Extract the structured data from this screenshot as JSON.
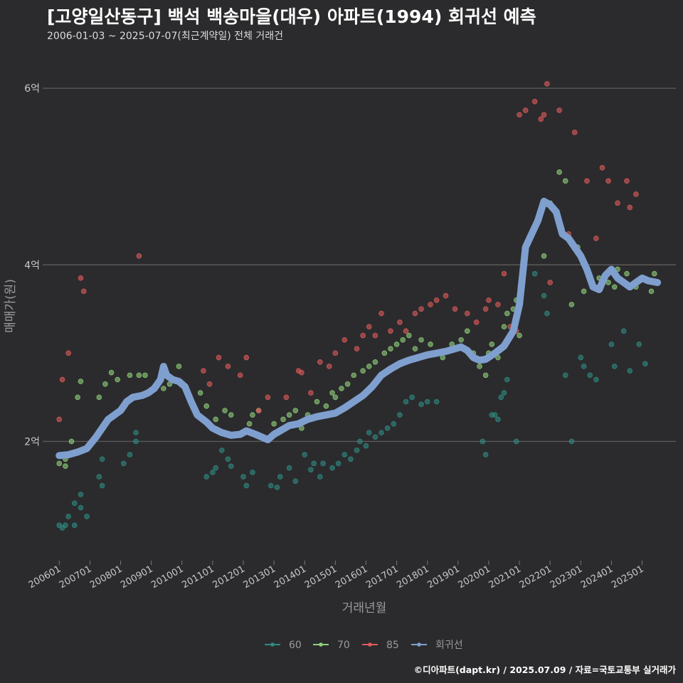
{
  "title": "[고양일산동구] 백석 백송마을(대우) 아파트(1994) 회귀선 예측",
  "subtitle": "2006-01-03 ~ 2025-07-07(최근계약일) 전체 거래건",
  "caption": "©디아파트(dapt.kr) / 2025.07.09 / 자료=국토교통부 실거래가",
  "colors": {
    "background": "#2b2b2d",
    "grid": "#5a5a5a",
    "s60": "#2e8b82",
    "s70": "#8fd07a",
    "s85": "#e05a5a",
    "trend": "#7f9fcf"
  },
  "chart_data": {
    "type": "scatter",
    "title": "[고양일산동구] 백석 백송마을(대우) 아파트(1994) 회귀선 예측",
    "xlabel": "거래년월",
    "ylabel": "매매가(원)",
    "xlim": [
      2005.6,
      2026.1
    ],
    "ylim": [
      0.65,
      6.5
    ],
    "x_ticks": [
      {
        "value": 2006,
        "label": "200601"
      },
      {
        "value": 2007,
        "label": "200701"
      },
      {
        "value": 2008,
        "label": "200801"
      },
      {
        "value": 2009,
        "label": "200901"
      },
      {
        "value": 2010,
        "label": "201001"
      },
      {
        "value": 2011,
        "label": "201101"
      },
      {
        "value": 2012,
        "label": "201201"
      },
      {
        "value": 2013,
        "label": "201301"
      },
      {
        "value": 2014,
        "label": "201401"
      },
      {
        "value": 2015,
        "label": "201501"
      },
      {
        "value": 2016,
        "label": "201601"
      },
      {
        "value": 2017,
        "label": "201701"
      },
      {
        "value": 2018,
        "label": "201801"
      },
      {
        "value": 2019,
        "label": "201901"
      },
      {
        "value": 2020,
        "label": "202001"
      },
      {
        "value": 2021,
        "label": "202101"
      },
      {
        "value": 2022,
        "label": "202201"
      },
      {
        "value": 2023,
        "label": "202301"
      },
      {
        "value": 2024,
        "label": "202401"
      },
      {
        "value": 2025,
        "label": "202501"
      }
    ],
    "y_ticks": [
      {
        "value": 2,
        "label": "2억"
      },
      {
        "value": 4,
        "label": "4억"
      },
      {
        "value": 6,
        "label": "6억"
      }
    ],
    "legend": [
      "60",
      "70",
      "85",
      "회귀선"
    ],
    "series": [
      {
        "name": "60",
        "points": [
          [
            2006.0,
            1.05
          ],
          [
            2006.1,
            1.02
          ],
          [
            2006.2,
            1.05
          ],
          [
            2006.3,
            1.15
          ],
          [
            2006.5,
            1.05
          ],
          [
            2006.5,
            1.3
          ],
          [
            2006.7,
            1.25
          ],
          [
            2006.7,
            1.4
          ],
          [
            2006.9,
            1.15
          ],
          [
            2007.3,
            1.6
          ],
          [
            2007.4,
            1.5
          ],
          [
            2007.4,
            1.8
          ],
          [
            2008.1,
            1.75
          ],
          [
            2008.3,
            1.85
          ],
          [
            2008.5,
            2.1
          ],
          [
            2008.5,
            2.0
          ],
          [
            2010.8,
            1.6
          ],
          [
            2011.0,
            1.65
          ],
          [
            2011.1,
            1.7
          ],
          [
            2011.3,
            1.9
          ],
          [
            2011.5,
            1.8
          ],
          [
            2011.6,
            1.72
          ],
          [
            2012.0,
            1.6
          ],
          [
            2012.1,
            1.5
          ],
          [
            2012.3,
            1.65
          ],
          [
            2012.9,
            1.5
          ],
          [
            2013.1,
            1.48
          ],
          [
            2013.2,
            1.6
          ],
          [
            2013.5,
            1.7
          ],
          [
            2013.7,
            1.55
          ],
          [
            2014.0,
            1.85
          ],
          [
            2014.2,
            1.68
          ],
          [
            2014.3,
            1.75
          ],
          [
            2014.5,
            1.6
          ],
          [
            2014.6,
            1.75
          ],
          [
            2014.9,
            1.7
          ],
          [
            2015.1,
            1.75
          ],
          [
            2015.3,
            1.85
          ],
          [
            2015.5,
            1.8
          ],
          [
            2015.7,
            1.9
          ],
          [
            2015.8,
            2.0
          ],
          [
            2016.0,
            1.95
          ],
          [
            2016.1,
            2.1
          ],
          [
            2016.3,
            2.05
          ],
          [
            2016.5,
            2.1
          ],
          [
            2016.7,
            2.15
          ],
          [
            2016.9,
            2.2
          ],
          [
            2017.1,
            2.3
          ],
          [
            2017.3,
            2.45
          ],
          [
            2017.5,
            2.5
          ],
          [
            2017.8,
            2.42
          ],
          [
            2018.0,
            2.45
          ],
          [
            2018.3,
            2.45
          ],
          [
            2019.8,
            2.0
          ],
          [
            2019.9,
            1.85
          ],
          [
            2020.1,
            2.3
          ],
          [
            2020.2,
            2.3
          ],
          [
            2020.3,
            2.25
          ],
          [
            2020.4,
            2.5
          ],
          [
            2020.5,
            2.55
          ],
          [
            2020.6,
            2.7
          ],
          [
            2020.9,
            2.0
          ],
          [
            2021.5,
            3.9
          ],
          [
            2021.8,
            3.65
          ],
          [
            2021.9,
            3.45
          ],
          [
            2022.5,
            2.75
          ],
          [
            2022.7,
            2.0
          ],
          [
            2023.0,
            2.95
          ],
          [
            2023.1,
            2.85
          ],
          [
            2023.3,
            2.75
          ],
          [
            2023.5,
            2.7
          ],
          [
            2024.0,
            3.1
          ],
          [
            2024.1,
            2.85
          ],
          [
            2024.4,
            3.25
          ],
          [
            2024.6,
            2.8
          ],
          [
            2024.9,
            3.1
          ],
          [
            2025.1,
            2.88
          ]
        ]
      },
      {
        "name": "70",
        "points": [
          [
            2006.0,
            1.75
          ],
          [
            2006.2,
            1.72
          ],
          [
            2006.2,
            1.8
          ],
          [
            2006.4,
            2.0
          ],
          [
            2006.6,
            2.5
          ],
          [
            2006.7,
            2.68
          ],
          [
            2007.3,
            2.5
          ],
          [
            2007.5,
            2.65
          ],
          [
            2007.7,
            2.78
          ],
          [
            2007.9,
            2.7
          ],
          [
            2008.3,
            2.75
          ],
          [
            2008.6,
            2.75
          ],
          [
            2008.8,
            2.75
          ],
          [
            2009.4,
            2.6
          ],
          [
            2009.6,
            2.65
          ],
          [
            2009.9,
            2.85
          ],
          [
            2010.6,
            2.55
          ],
          [
            2010.8,
            2.4
          ],
          [
            2011.1,
            2.25
          ],
          [
            2011.4,
            2.35
          ],
          [
            2011.6,
            2.3
          ],
          [
            2012.2,
            2.2
          ],
          [
            2012.3,
            2.3
          ],
          [
            2012.5,
            2.35
          ],
          [
            2013.0,
            2.2
          ],
          [
            2013.3,
            2.25
          ],
          [
            2013.5,
            2.3
          ],
          [
            2013.7,
            2.35
          ],
          [
            2013.9,
            2.15
          ],
          [
            2014.1,
            2.3
          ],
          [
            2014.4,
            2.45
          ],
          [
            2014.7,
            2.4
          ],
          [
            2014.9,
            2.55
          ],
          [
            2015.0,
            2.5
          ],
          [
            2015.2,
            2.6
          ],
          [
            2015.4,
            2.65
          ],
          [
            2015.6,
            2.75
          ],
          [
            2015.9,
            2.8
          ],
          [
            2016.1,
            2.85
          ],
          [
            2016.3,
            2.9
          ],
          [
            2016.6,
            3.0
          ],
          [
            2016.8,
            3.05
          ],
          [
            2017.0,
            3.1
          ],
          [
            2017.2,
            3.15
          ],
          [
            2017.4,
            3.2
          ],
          [
            2017.6,
            3.05
          ],
          [
            2017.8,
            3.15
          ],
          [
            2018.1,
            3.1
          ],
          [
            2018.3,
            3.0
          ],
          [
            2018.5,
            2.95
          ],
          [
            2018.8,
            3.1
          ],
          [
            2019.1,
            3.15
          ],
          [
            2019.3,
            3.25
          ],
          [
            2019.5,
            3.0
          ],
          [
            2019.7,
            2.85
          ],
          [
            2019.9,
            2.75
          ],
          [
            2020.0,
            3.0
          ],
          [
            2020.1,
            3.1
          ],
          [
            2020.3,
            2.95
          ],
          [
            2020.5,
            3.3
          ],
          [
            2020.6,
            3.45
          ],
          [
            2020.8,
            3.5
          ],
          [
            2020.9,
            3.6
          ],
          [
            2021.0,
            3.2
          ],
          [
            2021.3,
            4.25
          ],
          [
            2021.6,
            4.5
          ],
          [
            2021.8,
            4.1
          ],
          [
            2022.0,
            4.7
          ],
          [
            2022.3,
            5.05
          ],
          [
            2022.5,
            4.95
          ],
          [
            2022.7,
            3.55
          ],
          [
            2022.9,
            4.2
          ],
          [
            2023.1,
            3.7
          ],
          [
            2023.4,
            3.75
          ],
          [
            2023.6,
            3.85
          ],
          [
            2023.9,
            3.8
          ],
          [
            2024.1,
            3.75
          ],
          [
            2024.2,
            3.95
          ],
          [
            2024.5,
            3.9
          ],
          [
            2024.8,
            3.75
          ],
          [
            2025.0,
            3.85
          ],
          [
            2025.3,
            3.7
          ],
          [
            2025.4,
            3.9
          ]
        ]
      },
      {
        "name": "85",
        "points": [
          [
            2006.0,
            2.25
          ],
          [
            2006.1,
            2.7
          ],
          [
            2006.3,
            3.0
          ],
          [
            2006.7,
            3.85
          ],
          [
            2006.8,
            3.7
          ],
          [
            2008.6,
            4.1
          ],
          [
            2010.7,
            2.8
          ],
          [
            2010.9,
            2.65
          ],
          [
            2011.2,
            2.95
          ],
          [
            2011.5,
            2.85
          ],
          [
            2011.9,
            2.75
          ],
          [
            2012.1,
            2.95
          ],
          [
            2012.5,
            2.35
          ],
          [
            2012.8,
            2.5
          ],
          [
            2013.4,
            2.5
          ],
          [
            2013.8,
            2.8
          ],
          [
            2013.9,
            2.78
          ],
          [
            2014.2,
            2.55
          ],
          [
            2014.5,
            2.9
          ],
          [
            2014.8,
            2.85
          ],
          [
            2015.0,
            3.0
          ],
          [
            2015.3,
            3.15
          ],
          [
            2015.7,
            3.05
          ],
          [
            2015.9,
            3.2
          ],
          [
            2016.1,
            3.3
          ],
          [
            2016.3,
            3.2
          ],
          [
            2016.5,
            3.45
          ],
          [
            2016.8,
            3.25
          ],
          [
            2017.1,
            3.35
          ],
          [
            2017.3,
            3.25
          ],
          [
            2017.6,
            3.45
          ],
          [
            2017.8,
            3.5
          ],
          [
            2018.1,
            3.55
          ],
          [
            2018.3,
            3.6
          ],
          [
            2018.6,
            3.65
          ],
          [
            2018.9,
            3.5
          ],
          [
            2019.3,
            3.45
          ],
          [
            2019.6,
            3.35
          ],
          [
            2019.9,
            3.5
          ],
          [
            2020.0,
            3.6
          ],
          [
            2020.3,
            3.55
          ],
          [
            2020.5,
            3.9
          ],
          [
            2020.7,
            3.3
          ],
          [
            2020.9,
            3.25
          ],
          [
            2021.0,
            5.7
          ],
          [
            2021.2,
            5.75
          ],
          [
            2021.5,
            5.85
          ],
          [
            2021.7,
            5.65
          ],
          [
            2021.8,
            5.7
          ],
          [
            2021.9,
            6.05
          ],
          [
            2022.3,
            5.75
          ],
          [
            2022.6,
            4.35
          ],
          [
            2022.8,
            5.5
          ],
          [
            2023.2,
            4.95
          ],
          [
            2023.5,
            4.3
          ],
          [
            2023.7,
            5.1
          ],
          [
            2023.9,
            4.95
          ],
          [
            2024.2,
            4.7
          ],
          [
            2024.5,
            4.95
          ],
          [
            2024.6,
            4.65
          ],
          [
            2024.8,
            4.8
          ],
          [
            2022.0,
            3.8
          ]
        ]
      }
    ],
    "trend": [
      [
        2006.0,
        1.84
      ],
      [
        2006.3,
        1.85
      ],
      [
        2006.6,
        1.88
      ],
      [
        2006.9,
        1.92
      ],
      [
        2007.2,
        2.05
      ],
      [
        2007.4,
        2.15
      ],
      [
        2007.6,
        2.25
      ],
      [
        2007.8,
        2.3
      ],
      [
        2008.0,
        2.35
      ],
      [
        2008.2,
        2.45
      ],
      [
        2008.4,
        2.5
      ],
      [
        2008.7,
        2.52
      ],
      [
        2008.9,
        2.55
      ],
      [
        2009.1,
        2.6
      ],
      [
        2009.3,
        2.7
      ],
      [
        2009.4,
        2.85
      ],
      [
        2009.5,
        2.75
      ],
      [
        2009.7,
        2.7
      ],
      [
        2009.9,
        2.68
      ],
      [
        2010.1,
        2.62
      ],
      [
        2010.3,
        2.45
      ],
      [
        2010.5,
        2.3
      ],
      [
        2010.8,
        2.22
      ],
      [
        2011.0,
        2.15
      ],
      [
        2011.3,
        2.1
      ],
      [
        2011.6,
        2.07
      ],
      [
        2011.9,
        2.08
      ],
      [
        2012.1,
        2.12
      ],
      [
        2012.4,
        2.08
      ],
      [
        2012.6,
        2.05
      ],
      [
        2012.8,
        2.02
      ],
      [
        2013.0,
        2.08
      ],
      [
        2013.2,
        2.12
      ],
      [
        2013.5,
        2.18
      ],
      [
        2013.8,
        2.2
      ],
      [
        2014.1,
        2.25
      ],
      [
        2014.4,
        2.28
      ],
      [
        2014.7,
        2.3
      ],
      [
        2015.0,
        2.32
      ],
      [
        2015.3,
        2.38
      ],
      [
        2015.6,
        2.45
      ],
      [
        2015.9,
        2.52
      ],
      [
        2016.2,
        2.62
      ],
      [
        2016.5,
        2.75
      ],
      [
        2016.8,
        2.82
      ],
      [
        2017.1,
        2.88
      ],
      [
        2017.4,
        2.92
      ],
      [
        2017.7,
        2.95
      ],
      [
        2018.0,
        2.98
      ],
      [
        2018.3,
        3.0
      ],
      [
        2018.6,
        3.02
      ],
      [
        2018.9,
        3.05
      ],
      [
        2019.1,
        3.07
      ],
      [
        2019.3,
        3.03
      ],
      [
        2019.5,
        2.95
      ],
      [
        2019.7,
        2.92
      ],
      [
        2019.9,
        2.93
      ],
      [
        2020.2,
        3.0
      ],
      [
        2020.5,
        3.08
      ],
      [
        2020.8,
        3.25
      ],
      [
        2021.0,
        3.55
      ],
      [
        2021.2,
        4.2
      ],
      [
        2021.4,
        4.35
      ],
      [
        2021.6,
        4.5
      ],
      [
        2021.8,
        4.72
      ],
      [
        2022.0,
        4.68
      ],
      [
        2022.2,
        4.6
      ],
      [
        2022.4,
        4.35
      ],
      [
        2022.6,
        4.3
      ],
      [
        2022.8,
        4.2
      ],
      [
        2023.0,
        4.1
      ],
      [
        2023.2,
        3.95
      ],
      [
        2023.4,
        3.75
      ],
      [
        2023.6,
        3.72
      ],
      [
        2023.8,
        3.88
      ],
      [
        2024.0,
        3.95
      ],
      [
        2024.2,
        3.85
      ],
      [
        2024.4,
        3.8
      ],
      [
        2024.6,
        3.75
      ],
      [
        2024.8,
        3.8
      ],
      [
        2025.0,
        3.85
      ],
      [
        2025.2,
        3.82
      ],
      [
        2025.5,
        3.8
      ]
    ]
  }
}
